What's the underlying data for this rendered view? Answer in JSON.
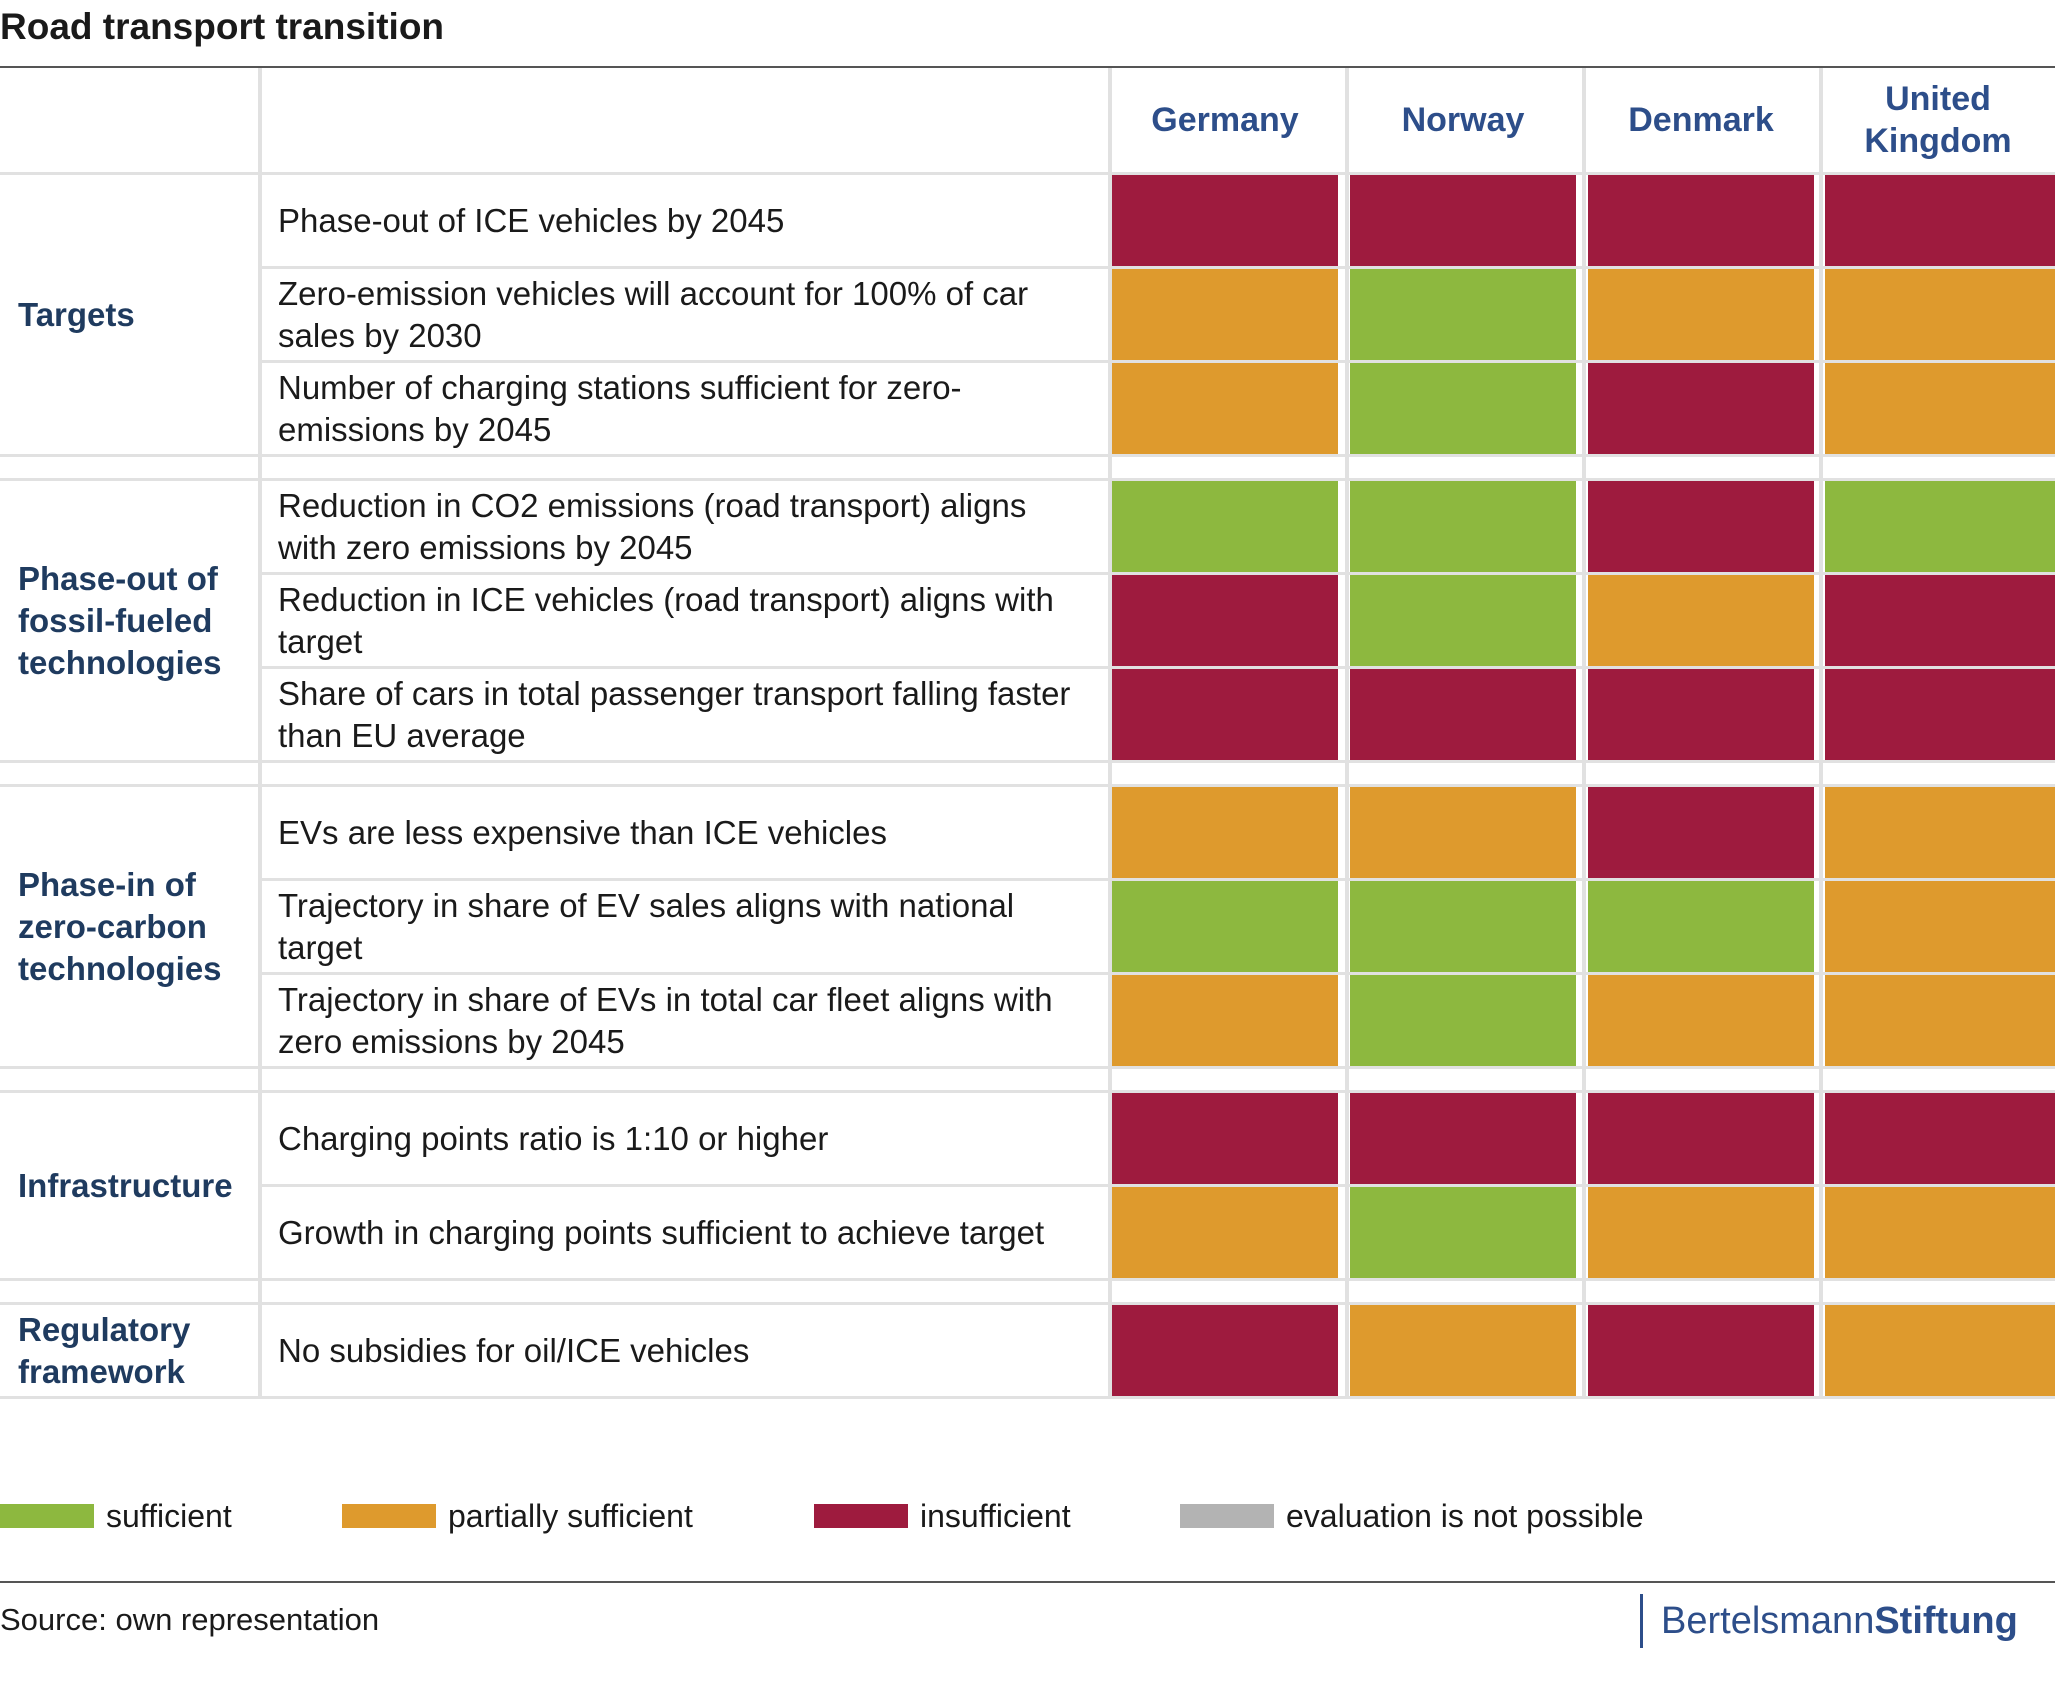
{
  "title": "Road transport transition",
  "countries": [
    "Germany",
    "Norway",
    "Denmark",
    "United Kingdom"
  ],
  "colors": {
    "sufficient": "#8db83f",
    "partially sufficient": "#de9a2d",
    "insufficient": "#9e1b3e",
    "evaluation is not possible": "#b3b3b3"
  },
  "legend": [
    {
      "label": "sufficient",
      "key": "sufficient"
    },
    {
      "label": "partially sufficient",
      "key": "partially sufficient"
    },
    {
      "label": "insufficient",
      "key": "insufficient"
    },
    {
      "label": "evaluation is not possible",
      "key": "evaluation is not possible"
    }
  ],
  "source": "Source: own representation",
  "brand": {
    "part1": "Bertelsmann",
    "part2": "Stiftung"
  },
  "chart_data": {
    "type": "table",
    "columns": [
      "Germany",
      "Norway",
      "Denmark",
      "United Kingdom"
    ],
    "groups": [
      {
        "category": "Targets",
        "rows": [
          {
            "indicator": "Phase-out of ICE vehicles by 2045",
            "ratings": [
              "insufficient",
              "insufficient",
              "insufficient",
              "insufficient"
            ]
          },
          {
            "indicator": "Zero-emission vehicles will account for 100% of car sales by 2030",
            "ratings": [
              "partially sufficient",
              "sufficient",
              "partially sufficient",
              "partially sufficient"
            ]
          },
          {
            "indicator": "Number of charging stations sufficient for zero-emissions by 2045",
            "ratings": [
              "partially sufficient",
              "sufficient",
              "insufficient",
              "partially sufficient"
            ]
          }
        ]
      },
      {
        "category": "Phase-out of fossil-fueled technologies",
        "rows": [
          {
            "indicator": "Reduction in CO2 emissions (road transport) aligns with zero emissions by 2045",
            "ratings": [
              "sufficient",
              "sufficient",
              "insufficient",
              "sufficient"
            ]
          },
          {
            "indicator": "Reduction in ICE vehicles (road transport) aligns with target",
            "ratings": [
              "insufficient",
              "sufficient",
              "partially sufficient",
              "insufficient"
            ]
          },
          {
            "indicator": "Share of cars in total passenger transport falling faster than EU average",
            "ratings": [
              "insufficient",
              "insufficient",
              "insufficient",
              "insufficient"
            ]
          }
        ]
      },
      {
        "category": "Phase-in of zero-carbon technologies",
        "rows": [
          {
            "indicator": "EVs are less expensive than ICE vehicles",
            "ratings": [
              "partially sufficient",
              "partially sufficient",
              "insufficient",
              "partially sufficient"
            ]
          },
          {
            "indicator": "Trajectory in share of EV sales aligns with national target",
            "ratings": [
              "sufficient",
              "sufficient",
              "sufficient",
              "partially sufficient"
            ]
          },
          {
            "indicator": "Trajectory in share of EVs in total car fleet aligns with zero emissions by 2045",
            "ratings": [
              "partially sufficient",
              "sufficient",
              "partially sufficient",
              "partially sufficient"
            ]
          }
        ]
      },
      {
        "category": "Infrastructure",
        "rows": [
          {
            "indicator": "Charging points ratio is 1:10 or higher",
            "ratings": [
              "insufficient",
              "insufficient",
              "insufficient",
              "insufficient"
            ]
          },
          {
            "indicator": "Growth in charging points sufficient to achieve target",
            "ratings": [
              "partially sufficient",
              "sufficient",
              "partially sufficient",
              "partially sufficient"
            ]
          }
        ]
      },
      {
        "category": "Regulatory framework",
        "rows": [
          {
            "indicator": "No subsidies for oil/ICE vehicles",
            "ratings": [
              "insufficient",
              "partially sufficient",
              "insufficient",
              "partially sufficient"
            ]
          }
        ]
      }
    ]
  }
}
